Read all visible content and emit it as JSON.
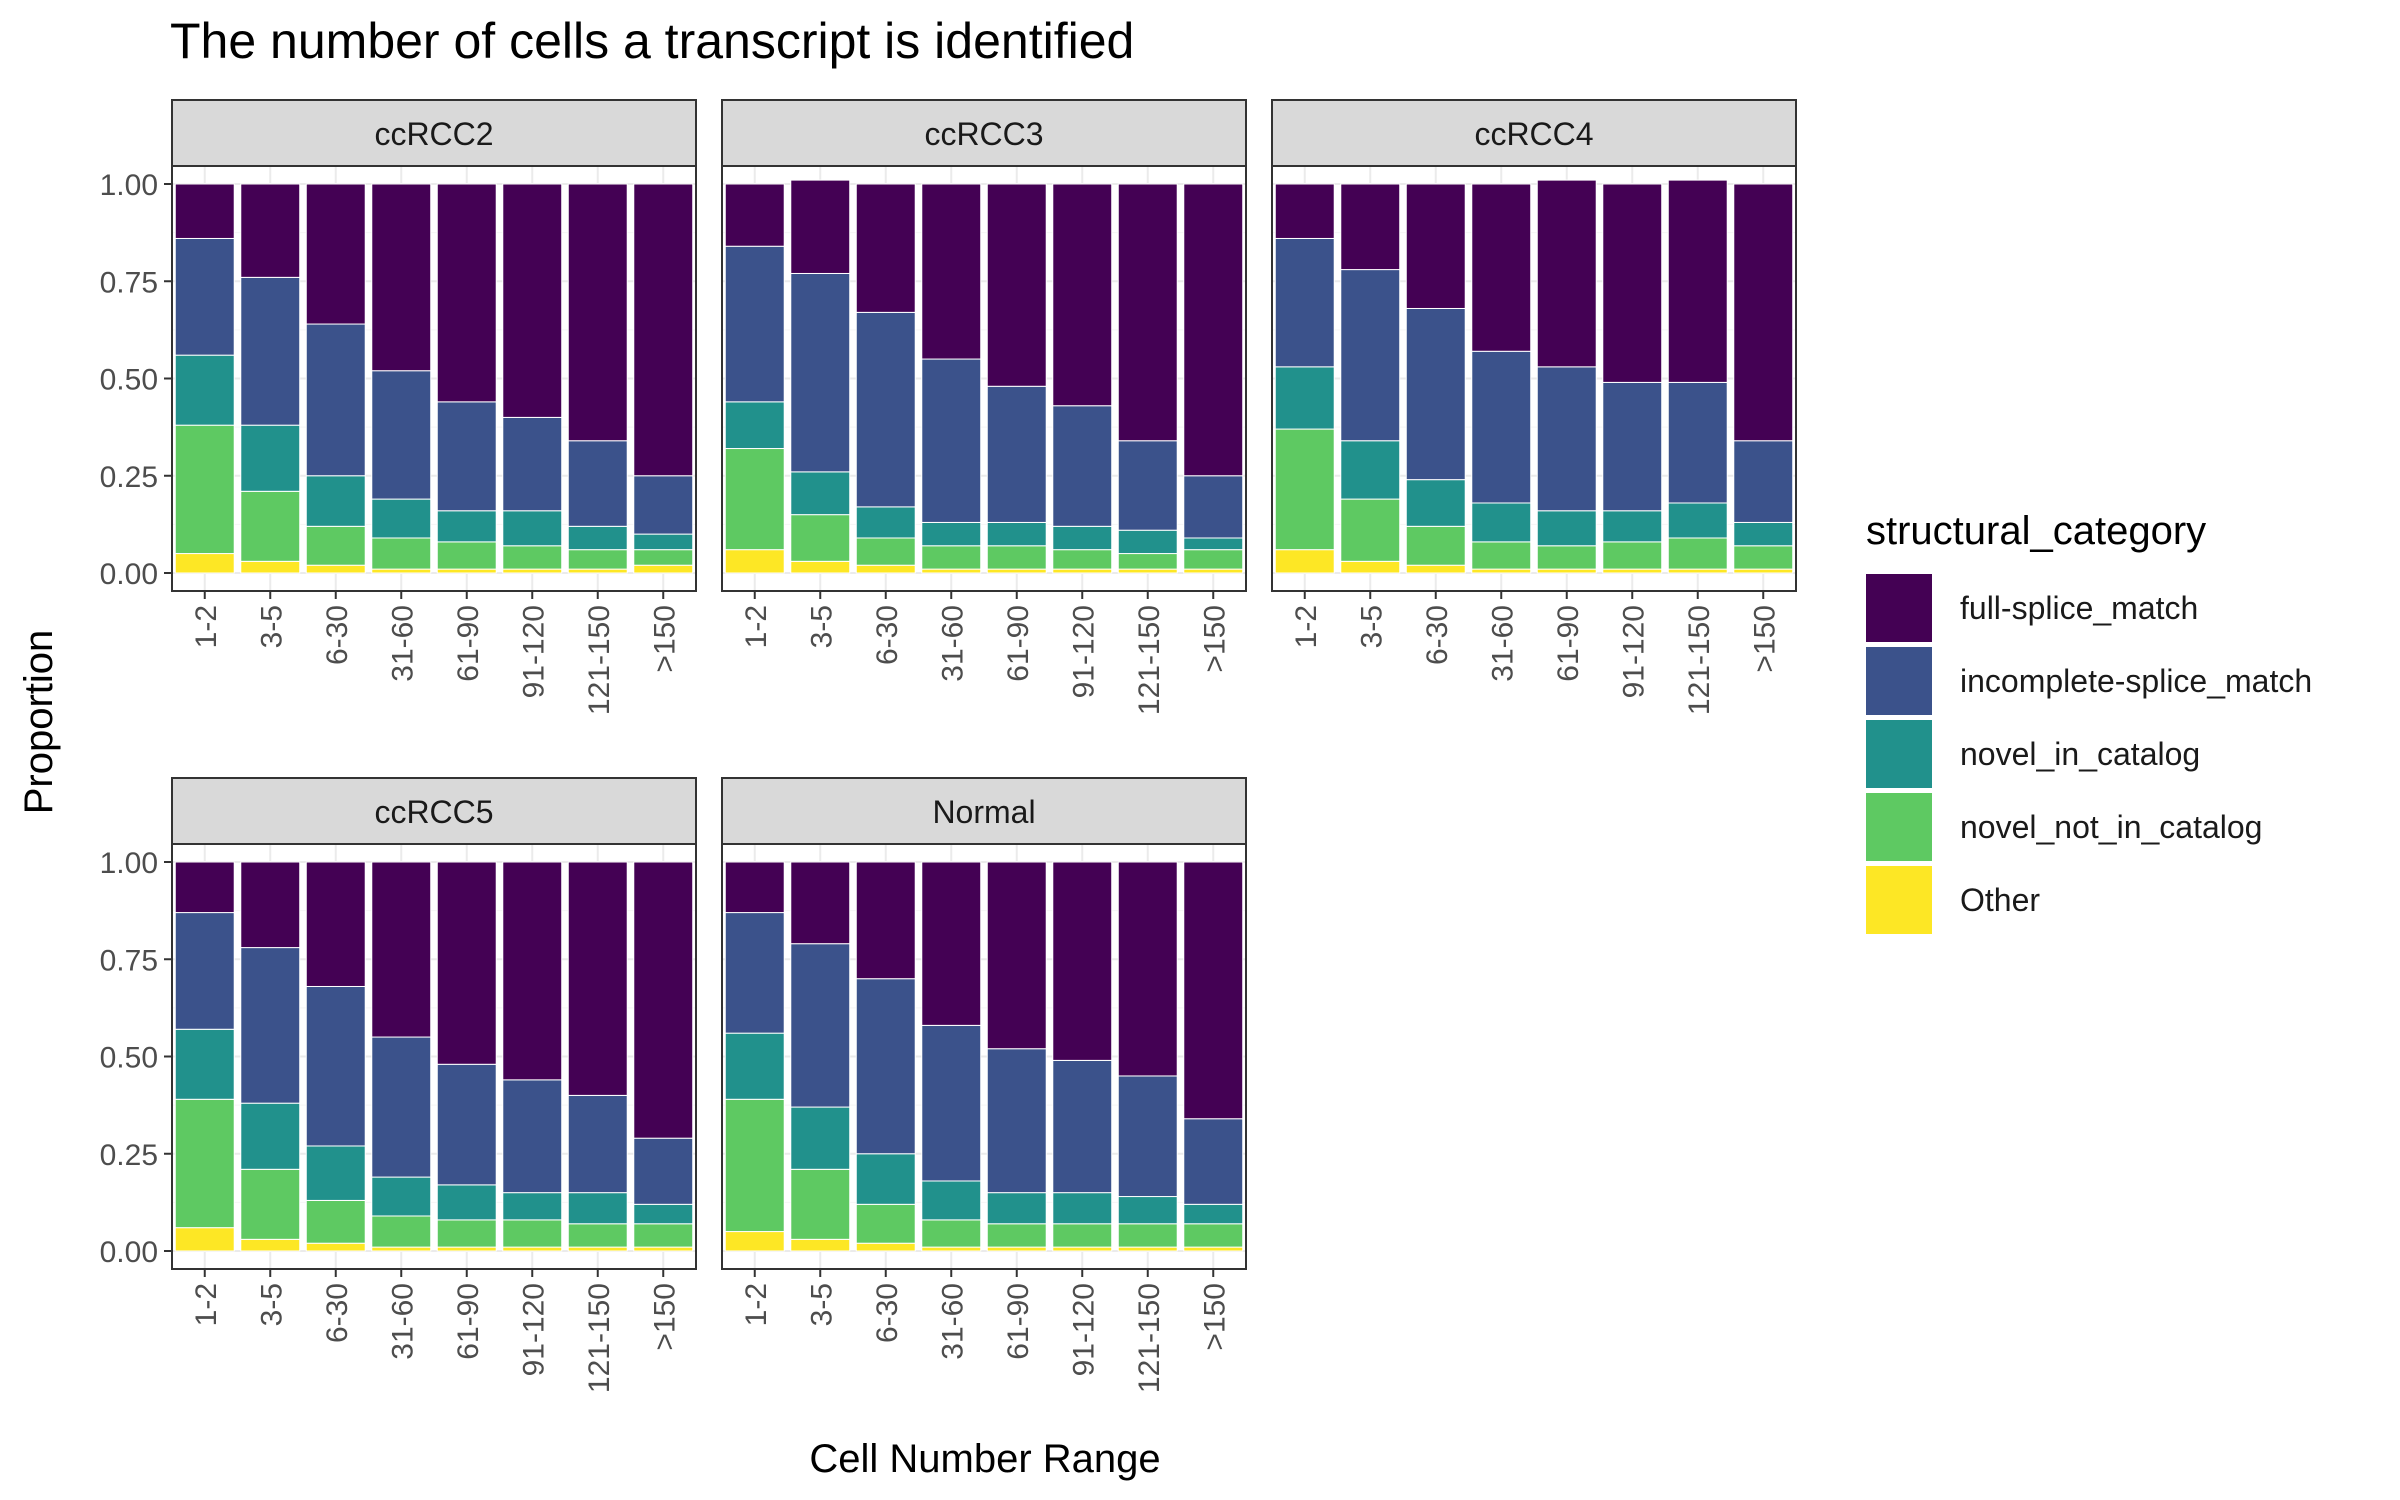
{
  "chart_data": {
    "type": "bar",
    "title": "The number of cells a transcript is identified",
    "xlabel": "Cell Number Range",
    "ylabel": "Proportion",
    "ylim": [
      0,
      1
    ],
    "yticks": [
      "0.00",
      "0.25",
      "0.50",
      "0.75",
      "1.00"
    ],
    "grid": true,
    "legend": {
      "title": "structural_category",
      "placement": "right",
      "order_top_to_bottom": [
        "full-splice_match",
        "incomplete-splice_match",
        "novel_in_catalog",
        "novel_not_in_catalog",
        "Other"
      ]
    },
    "categories": [
      "1-2",
      "3-5",
      "6-30",
      "31-60",
      "61-90",
      "91-120",
      "121-150",
      ">150"
    ],
    "stack_order_bottom_to_top": [
      "Other",
      "novel_not_in_catalog",
      "novel_in_catalog",
      "incomplete-splice_match",
      "full-splice_match"
    ],
    "colors": {
      "Other": "#fde725",
      "novel_not_in_catalog": "#5ec962",
      "novel_in_catalog": "#21918c",
      "incomplete-splice_match": "#3b528b",
      "full-splice_match": "#440154"
    },
    "facets": [
      {
        "name": "ccRCC2",
        "series": [
          {
            "name": "Other",
            "values": [
              0.05,
              0.03,
              0.02,
              0.01,
              0.01,
              0.01,
              0.01,
              0.02
            ]
          },
          {
            "name": "novel_not_in_catalog",
            "values": [
              0.33,
              0.18,
              0.1,
              0.08,
              0.07,
              0.06,
              0.05,
              0.04
            ]
          },
          {
            "name": "novel_in_catalog",
            "values": [
              0.18,
              0.17,
              0.13,
              0.1,
              0.08,
              0.09,
              0.06,
              0.04
            ]
          },
          {
            "name": "incomplete-splice_match",
            "values": [
              0.3,
              0.38,
              0.39,
              0.33,
              0.28,
              0.24,
              0.22,
              0.15
            ]
          },
          {
            "name": "full-splice_match",
            "values": [
              0.14,
              0.24,
              0.36,
              0.48,
              0.56,
              0.6,
              0.66,
              0.75
            ]
          }
        ]
      },
      {
        "name": "ccRCC3",
        "series": [
          {
            "name": "Other",
            "values": [
              0.06,
              0.03,
              0.02,
              0.01,
              0.01,
              0.01,
              0.01,
              0.01
            ]
          },
          {
            "name": "novel_not_in_catalog",
            "values": [
              0.26,
              0.12,
              0.07,
              0.06,
              0.06,
              0.05,
              0.04,
              0.05
            ]
          },
          {
            "name": "novel_in_catalog",
            "values": [
              0.12,
              0.11,
              0.08,
              0.06,
              0.06,
              0.06,
              0.06,
              0.03
            ]
          },
          {
            "name": "incomplete-splice_match",
            "values": [
              0.4,
              0.51,
              0.5,
              0.42,
              0.35,
              0.31,
              0.23,
              0.16
            ]
          },
          {
            "name": "full-splice_match",
            "values": [
              0.16,
              0.24,
              0.33,
              0.45,
              0.52,
              0.57,
              0.66,
              0.75
            ]
          }
        ]
      },
      {
        "name": "ccRCC4",
        "series": [
          {
            "name": "Other",
            "values": [
              0.06,
              0.03,
              0.02,
              0.01,
              0.01,
              0.01,
              0.01,
              0.01
            ]
          },
          {
            "name": "novel_not_in_catalog",
            "values": [
              0.31,
              0.16,
              0.1,
              0.07,
              0.06,
              0.07,
              0.08,
              0.06
            ]
          },
          {
            "name": "novel_in_catalog",
            "values": [
              0.16,
              0.15,
              0.12,
              0.1,
              0.09,
              0.08,
              0.09,
              0.06
            ]
          },
          {
            "name": "incomplete-splice_match",
            "values": [
              0.33,
              0.44,
              0.44,
              0.39,
              0.37,
              0.33,
              0.31,
              0.21
            ]
          },
          {
            "name": "full-splice_match",
            "values": [
              0.14,
              0.22,
              0.32,
              0.43,
              0.48,
              0.51,
              0.52,
              0.66
            ]
          }
        ]
      },
      {
        "name": "ccRCC5",
        "series": [
          {
            "name": "Other",
            "values": [
              0.06,
              0.03,
              0.02,
              0.01,
              0.01,
              0.01,
              0.01,
              0.01
            ]
          },
          {
            "name": "novel_not_in_catalog",
            "values": [
              0.33,
              0.18,
              0.11,
              0.08,
              0.07,
              0.07,
              0.06,
              0.06
            ]
          },
          {
            "name": "novel_in_catalog",
            "values": [
              0.18,
              0.17,
              0.14,
              0.1,
              0.09,
              0.07,
              0.08,
              0.05
            ]
          },
          {
            "name": "incomplete-splice_match",
            "values": [
              0.3,
              0.4,
              0.41,
              0.36,
              0.31,
              0.29,
              0.25,
              0.17
            ]
          },
          {
            "name": "full-splice_match",
            "values": [
              0.13,
              0.22,
              0.32,
              0.45,
              0.52,
              0.56,
              0.6,
              0.71
            ]
          }
        ]
      },
      {
        "name": "Normal",
        "series": [
          {
            "name": "Other",
            "values": [
              0.05,
              0.03,
              0.02,
              0.01,
              0.01,
              0.01,
              0.01,
              0.01
            ]
          },
          {
            "name": "novel_not_in_catalog",
            "values": [
              0.34,
              0.18,
              0.1,
              0.07,
              0.06,
              0.06,
              0.06,
              0.06
            ]
          },
          {
            "name": "novel_in_catalog",
            "values": [
              0.17,
              0.16,
              0.13,
              0.1,
              0.08,
              0.08,
              0.07,
              0.05
            ]
          },
          {
            "name": "incomplete-splice_match",
            "values": [
              0.31,
              0.42,
              0.45,
              0.4,
              0.37,
              0.34,
              0.31,
              0.22
            ]
          },
          {
            "name": "full-splice_match",
            "values": [
              0.13,
              0.21,
              0.3,
              0.42,
              0.48,
              0.51,
              0.55,
              0.66
            ]
          }
        ]
      }
    ]
  }
}
